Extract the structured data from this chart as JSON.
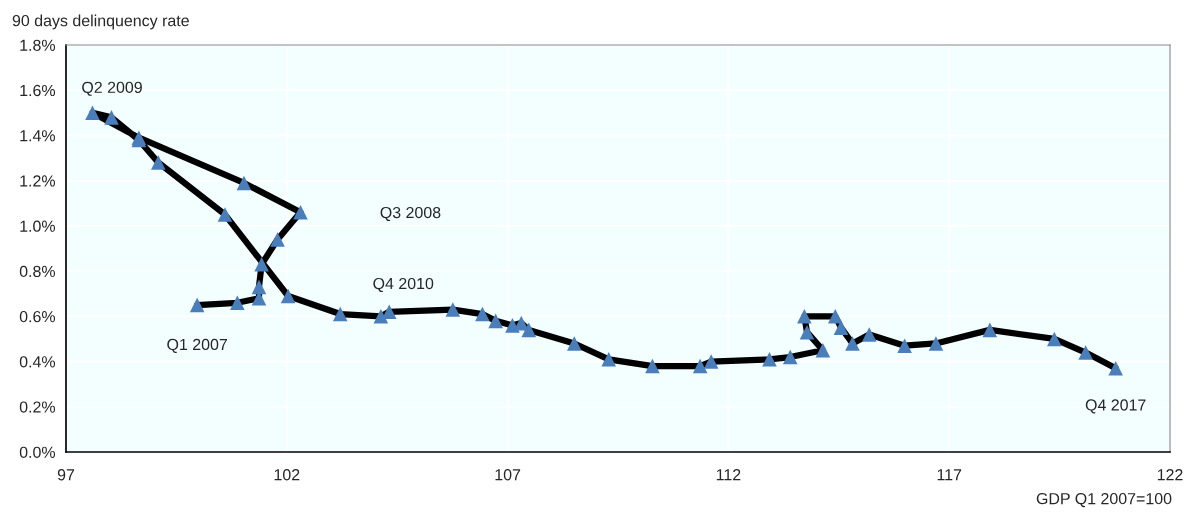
{
  "chart_data": {
    "type": "line",
    "ylabel": "90 days delinquency rate",
    "xlabel": "GDP Q1 2007=100",
    "marker": "triangle",
    "grid": true,
    "xlim": [
      97,
      122
    ],
    "xticks": [
      97,
      102,
      107,
      112,
      117,
      122
    ],
    "ylim": [
      0,
      1.8
    ],
    "yticks": [
      {
        "value": 0,
        "label": "0.0%"
      },
      {
        "value": 0.2,
        "label": "0.2%"
      },
      {
        "value": 0.4,
        "label": "0.4%"
      },
      {
        "value": 0.6,
        "label": "0.6%"
      },
      {
        "value": 0.8,
        "label": "0.8%"
      },
      {
        "value": 1.0,
        "label": "1.0%"
      },
      {
        "value": 1.2,
        "label": "1.2%"
      },
      {
        "value": 1.4,
        "label": "1.4%"
      },
      {
        "value": 1.6,
        "label": "1.6%"
      },
      {
        "value": 1.8,
        "label": "1.8%"
      }
    ],
    "series": [
      {
        "color": "#000000",
        "x": [
          99.97,
          100.88,
          101.37,
          101.37,
          101.43,
          101.79,
          102.31,
          101.03,
          98.65,
          97.6,
          98.03,
          98.65,
          99.09,
          100.6,
          102.03,
          103.21,
          104.13,
          104.32,
          105.76,
          106.43,
          106.73,
          107.11,
          107.31,
          107.48,
          108.51,
          109.29,
          110.28,
          111.36,
          111.61,
          112.93,
          113.4,
          114.14,
          113.78,
          113.72,
          114.42,
          114.55,
          114.81,
          115.19,
          115.99,
          116.7,
          117.92,
          119.38,
          120.09,
          120.77
        ],
        "values": [
          0.65,
          0.66,
          0.68,
          0.73,
          0.83,
          0.94,
          1.06,
          1.19,
          1.39,
          1.5,
          1.48,
          1.38,
          1.28,
          1.05,
          0.69,
          0.61,
          0.6,
          0.62,
          0.63,
          0.61,
          0.58,
          0.56,
          0.57,
          0.54,
          0.48,
          0.41,
          0.38,
          0.38,
          0.4,
          0.41,
          0.42,
          0.45,
          0.53,
          0.6,
          0.6,
          0.55,
          0.48,
          0.52,
          0.47,
          0.48,
          0.54,
          0.5,
          0.44,
          0.37
        ]
      }
    ],
    "annotations": [
      {
        "text": "Q1 2007",
        "x": 99.97,
        "y": 0.65
      },
      "Q3 2008",
      {
        "text": "Q2 2009",
        "x": 97.6,
        "y": 1.5
      },
      {
        "text": "Q4 2010",
        "x": 104.32,
        "y": 0.62
      },
      {
        "text": "Q4 2017",
        "x": 120.77,
        "y": 0.37
      }
    ]
  }
}
